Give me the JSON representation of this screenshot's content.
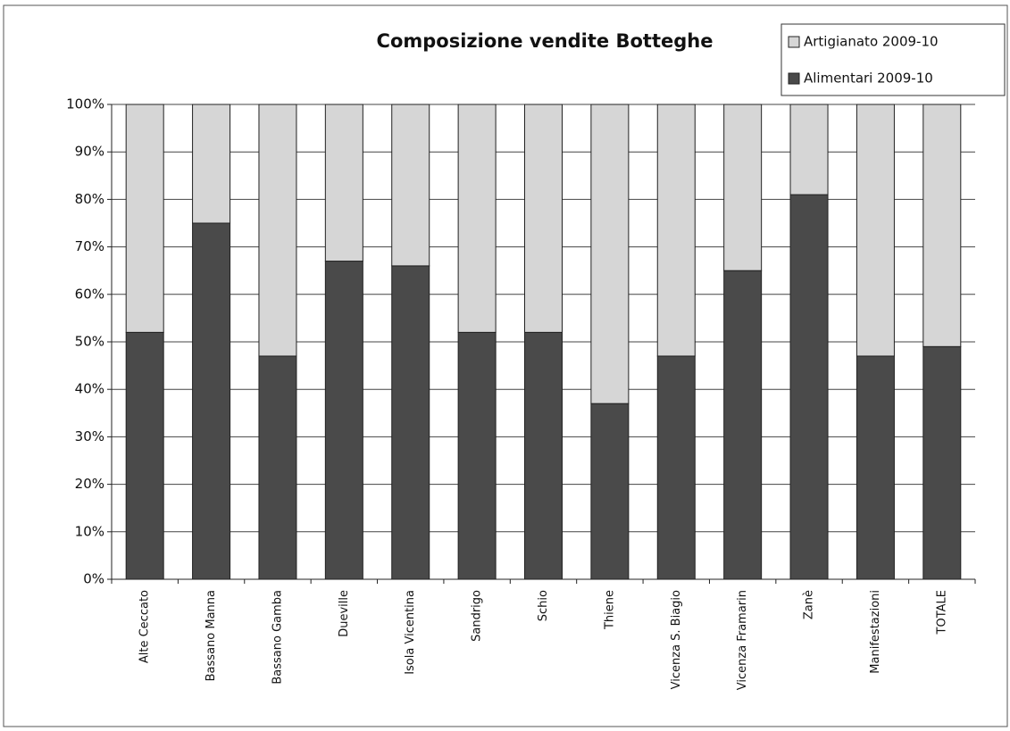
{
  "chart_data": {
    "type": "stacked_bar",
    "title": "Composizione vendite Botteghe",
    "categories": [
      "Alte Ceccato",
      "Bassano Manna",
      "Bassano Gamba",
      "Dueville",
      "Isola Vicentina",
      "Sandrigo",
      "Schio",
      "Thiene",
      "Vicenza S. Biagio",
      "Vicenza Framarin",
      "Zanè",
      "Manifestazioni",
      "TOTALE"
    ],
    "series": [
      {
        "name": "Alimentari 2009-10",
        "color": "#4a4a4a",
        "values": [
          52,
          75,
          47,
          67,
          66,
          52,
          52,
          37,
          47,
          65,
          81,
          47,
          49
        ]
      },
      {
        "name": "Artigianato 2009-10",
        "color": "#d6d6d6",
        "values": [
          48,
          25,
          53,
          33,
          34,
          48,
          48,
          63,
          53,
          35,
          19,
          53,
          51
        ]
      }
    ],
    "ylim": [
      0,
      100
    ],
    "yticks": [
      {
        "value": 0,
        "label": "0%"
      },
      {
        "value": 10,
        "label": "10%"
      },
      {
        "value": 20,
        "label": "20%"
      },
      {
        "value": 30,
        "label": "30%"
      },
      {
        "value": 40,
        "label": "40%"
      },
      {
        "value": 50,
        "label": "50%"
      },
      {
        "value": 60,
        "label": "60%"
      },
      {
        "value": 70,
        "label": "70%"
      },
      {
        "value": 80,
        "label": "80%"
      },
      {
        "value": 90,
        "label": "90%"
      },
      {
        "value": 100,
        "label": "100%"
      }
    ],
    "grid": true,
    "legend_position": "top-right"
  }
}
